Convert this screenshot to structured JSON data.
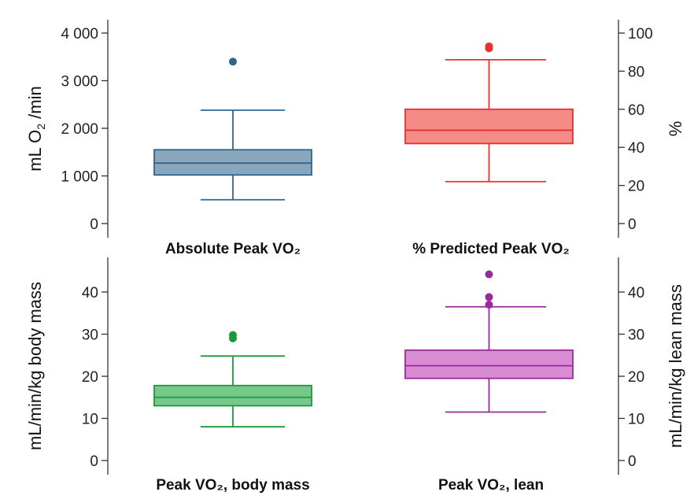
{
  "chart_data": [
    {
      "type": "box",
      "title": "Absolute Peak VO₂",
      "ylabel_main": "mL O",
      "ylabel_sub": "2",
      "ylabel_rest": "/min",
      "y_axis_side": "left",
      "ylim": [
        0,
        4000
      ],
      "ticks": [
        0,
        1000,
        2000,
        3000,
        4000
      ],
      "tick_labels": [
        "0",
        "1 000",
        "2 000",
        "3 000",
        "4 000"
      ],
      "color": "#2f6690",
      "fill": "#8aa6bd",
      "box": {
        "whisker_low": 500,
        "q1": 1020,
        "median": 1270,
        "q3": 1550,
        "whisker_high": 2380
      },
      "outliers": [
        3400
      ]
    },
    {
      "type": "box",
      "title": "% Predicted Peak VO₂",
      "ylabel_main": "%",
      "y_axis_side": "right",
      "ylim": [
        0,
        100
      ],
      "ticks": [
        0,
        20,
        40,
        60,
        80,
        100
      ],
      "tick_labels": [
        "0",
        "20",
        "40",
        "60",
        "80",
        "100"
      ],
      "color": "#e8302c",
      "fill": "#f48b86",
      "box": {
        "whisker_low": 22,
        "q1": 42,
        "median": 49,
        "q3": 60,
        "whisker_high": 86
      },
      "outliers": [
        92,
        93
      ]
    },
    {
      "type": "box",
      "title": "Peak VO₂, body mass",
      "ylabel_main": "mL/min/kg   body mass",
      "y_axis_side": "left",
      "ylim": [
        0,
        45
      ],
      "ticks": [
        0,
        10,
        20,
        30,
        40
      ],
      "tick_labels": [
        "0",
        "10",
        "20",
        "30",
        "40"
      ],
      "color": "#1b9a3a",
      "fill": "#76c98a",
      "box": {
        "whisker_low": 8,
        "q1": 13,
        "median": 15,
        "q3": 17.8,
        "whisker_high": 24.8
      },
      "outliers": [
        29,
        29.8
      ]
    },
    {
      "type": "box",
      "title": "Peak VO₂, lean",
      "ylabel_main": "mL/min/kg   lean mass",
      "y_axis_side": "right",
      "ylim": [
        0,
        45
      ],
      "ticks": [
        0,
        10,
        20,
        30,
        40
      ],
      "tick_labels": [
        "0",
        "10",
        "20",
        "30",
        "40"
      ],
      "color": "#9a2a9a",
      "fill": "#d98bd3",
      "box": {
        "whisker_low": 11.5,
        "q1": 19.5,
        "median": 22.5,
        "q3": 26.2,
        "whisker_high": 36.5
      },
      "outliers": [
        37,
        38.8,
        44.2
      ]
    }
  ]
}
